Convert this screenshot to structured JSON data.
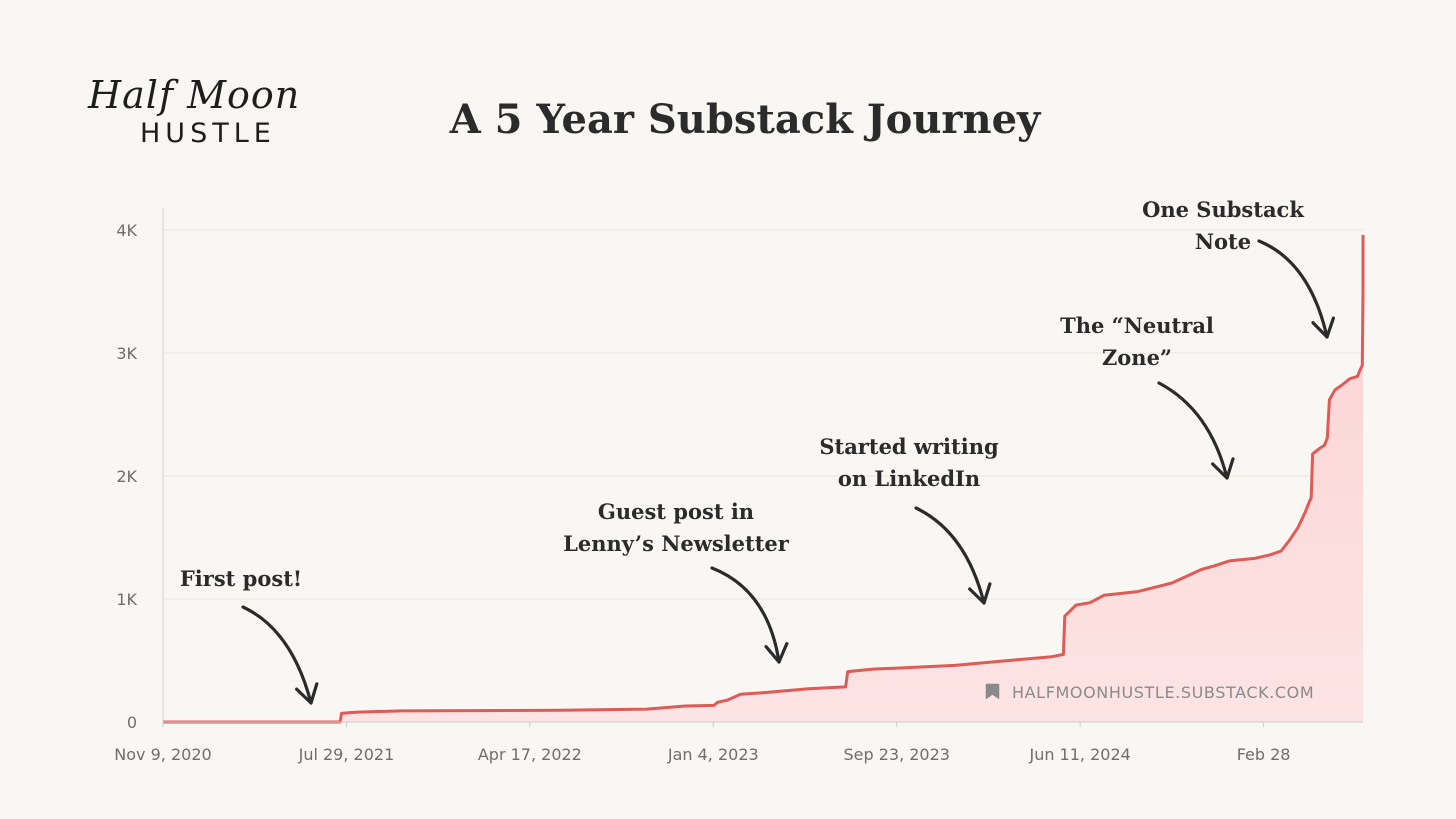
{
  "brand": {
    "script_text": "Half Moon",
    "caps_text": "HUSTLE"
  },
  "title": "A 5 Year Substack Journey",
  "watermark": {
    "text": "HALFMOONHUSTLE.SUBSTACK.COM",
    "icon": "bookmark-icon"
  },
  "colors": {
    "line": "#e05a56",
    "fill": "#fbd4d4",
    "background": "#f9f7f4",
    "text": "#2b2b2b",
    "axis_text": "#6e6e6e"
  },
  "chart_data": {
    "type": "area",
    "title": "A 5 Year Substack Journey",
    "xlabel": "",
    "ylabel": "",
    "x_range": [
      "2020-11-09",
      "2025-07-20"
    ],
    "ylim": [
      0,
      4000
    ],
    "grid": true,
    "x_ticks": [
      "Nov 9, 2020",
      "Jul 29, 2021",
      "Apr 17, 2022",
      "Jan 4, 2023",
      "Sep 23, 2023",
      "Jun 11, 2024",
      "Feb 28"
    ],
    "x_tick_dates": [
      "2020-11-09",
      "2021-07-29",
      "2022-04-17",
      "2023-01-04",
      "2023-09-23",
      "2024-06-11",
      "2025-02-28"
    ],
    "y_ticks": [
      0,
      1000,
      2000,
      3000,
      4000
    ],
    "y_tick_labels": [
      "0",
      "1K",
      "2K",
      "3K",
      "4K"
    ],
    "points": [
      [
        "2020-11-09",
        0
      ],
      [
        "2021-07-20",
        0
      ],
      [
        "2021-07-22",
        70
      ],
      [
        "2021-08-10",
        80
      ],
      [
        "2021-10-15",
        90
      ],
      [
        "2022-06-01",
        95
      ],
      [
        "2022-10-01",
        105
      ],
      [
        "2022-11-25",
        130
      ],
      [
        "2023-01-05",
        135
      ],
      [
        "2023-01-10",
        160
      ],
      [
        "2023-01-25",
        180
      ],
      [
        "2023-02-12",
        225
      ],
      [
        "2023-03-20",
        240
      ],
      [
        "2023-05-20",
        270
      ],
      [
        "2023-07-12",
        285
      ],
      [
        "2023-07-15",
        410
      ],
      [
        "2023-08-20",
        430
      ],
      [
        "2023-10-01",
        440
      ],
      [
        "2023-12-15",
        460
      ],
      [
        "2024-03-01",
        500
      ],
      [
        "2024-05-01",
        530
      ],
      [
        "2024-05-18",
        550
      ],
      [
        "2024-05-20",
        860
      ],
      [
        "2024-06-05",
        950
      ],
      [
        "2024-06-25",
        970
      ],
      [
        "2024-07-15",
        1030
      ],
      [
        "2024-09-01",
        1060
      ],
      [
        "2024-10-20",
        1130
      ],
      [
        "2024-12-01",
        1240
      ],
      [
        "2024-12-20",
        1270
      ],
      [
        "2025-01-10",
        1310
      ],
      [
        "2025-02-15",
        1330
      ],
      [
        "2025-03-10",
        1360
      ],
      [
        "2025-03-25",
        1390
      ],
      [
        "2025-04-05",
        1470
      ],
      [
        "2025-04-18",
        1580
      ],
      [
        "2025-04-28",
        1700
      ],
      [
        "2025-05-05",
        1800
      ],
      [
        "2025-05-07",
        1820
      ],
      [
        "2025-05-09",
        2180
      ],
      [
        "2025-05-18",
        2220
      ],
      [
        "2025-05-26",
        2250
      ],
      [
        "2025-05-30",
        2310
      ],
      [
        "2025-06-02",
        2620
      ],
      [
        "2025-06-10",
        2700
      ],
      [
        "2025-06-20",
        2740
      ],
      [
        "2025-07-01",
        2790
      ],
      [
        "2025-07-12",
        2810
      ],
      [
        "2025-07-15",
        2850
      ],
      [
        "2025-07-19",
        2900
      ],
      [
        "2025-07-21",
        3500
      ],
      [
        "2025-07-25",
        3520
      ],
      [
        "2025-07-30",
        3900
      ],
      [
        "2025-08-05",
        3940
      ],
      [
        "2025-08-08",
        3960
      ]
    ],
    "annotations": [
      {
        "id": "first-post",
        "lines": [
          "First post!"
        ],
        "date": "2021-07-22"
      },
      {
        "id": "guest-post",
        "lines": [
          "Guest post in",
          "Lenny’s Newsletter"
        ],
        "date": "2023-07-10"
      },
      {
        "id": "linkedin",
        "lines": [
          "Started writing",
          "on LinkedIn"
        ],
        "date": "2024-05-19"
      },
      {
        "id": "neutral-zone",
        "lines": [
          "The “Neutral",
          "Zone”"
        ],
        "date": "2025-04-28"
      },
      {
        "id": "substack-note",
        "lines": [
          "One Substack",
          "Note"
        ],
        "date": "2025-07-19"
      }
    ]
  }
}
